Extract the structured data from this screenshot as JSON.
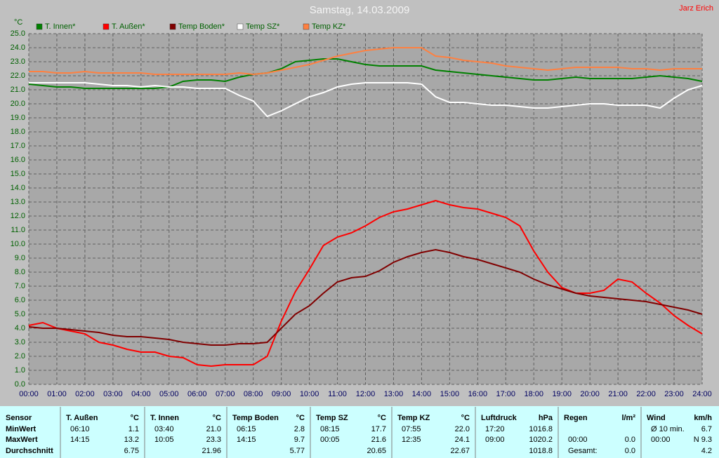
{
  "chart_data": {
    "type": "line",
    "title": "Samstag, 14.03.2009",
    "author": "Jarz Erich",
    "ylabel": "°C",
    "xlim": [
      0,
      24
    ],
    "ylim": [
      0,
      25
    ],
    "grid": true,
    "x": [
      0,
      0.5,
      1,
      1.5,
      2,
      2.5,
      3,
      3.5,
      4,
      4.5,
      5,
      5.5,
      6,
      6.5,
      7,
      7.5,
      8,
      8.5,
      9,
      9.5,
      10,
      10.5,
      11,
      11.5,
      12,
      12.5,
      13,
      13.5,
      14,
      14.5,
      15,
      15.5,
      16,
      16.5,
      17,
      17.5,
      18,
      18.5,
      19,
      19.5,
      20,
      20.5,
      21,
      21.5,
      22,
      22.5,
      23,
      23.5,
      24
    ],
    "xticks": [
      {
        "value": 0,
        "label": "00:00"
      },
      {
        "value": 1,
        "label": "01:00"
      },
      {
        "value": 2,
        "label": "02:00"
      },
      {
        "value": 3,
        "label": "03:00"
      },
      {
        "value": 4,
        "label": "04:00"
      },
      {
        "value": 5,
        "label": "05:00"
      },
      {
        "value": 6,
        "label": "06:00"
      },
      {
        "value": 7,
        "label": "07:00"
      },
      {
        "value": 8,
        "label": "08:00"
      },
      {
        "value": 9,
        "label": "09:00"
      },
      {
        "value": 10,
        "label": "10:00"
      },
      {
        "value": 11,
        "label": "11:00"
      },
      {
        "value": 12,
        "label": "12:00"
      },
      {
        "value": 13,
        "label": "13:00"
      },
      {
        "value": 14,
        "label": "14:00"
      },
      {
        "value": 15,
        "label": "15:00"
      },
      {
        "value": 16,
        "label": "16:00"
      },
      {
        "value": 17,
        "label": "17:00"
      },
      {
        "value": 18,
        "label": "18:00"
      },
      {
        "value": 19,
        "label": "19:00"
      },
      {
        "value": 20,
        "label": "20:00"
      },
      {
        "value": 21,
        "label": "21:00"
      },
      {
        "value": 22,
        "label": "22:00"
      },
      {
        "value": 23,
        "label": "23:00"
      },
      {
        "value": 24,
        "label": "24:00"
      }
    ],
    "yticks": [
      {
        "value": 0,
        "label": "0.0"
      },
      {
        "value": 1,
        "label": "1.0"
      },
      {
        "value": 2,
        "label": "2.0"
      },
      {
        "value": 3,
        "label": "3.0"
      },
      {
        "value": 4,
        "label": "4.0"
      },
      {
        "value": 5,
        "label": "5.0"
      },
      {
        "value": 6,
        "label": "6.0"
      },
      {
        "value": 7,
        "label": "7.0"
      },
      {
        "value": 8,
        "label": "8.0"
      },
      {
        "value": 9,
        "label": "9.0"
      },
      {
        "value": 10,
        "label": "10.0"
      },
      {
        "value": 11,
        "label": "11.0"
      },
      {
        "value": 12,
        "label": "12.0"
      },
      {
        "value": 13,
        "label": "13.0"
      },
      {
        "value": 14,
        "label": "14.0"
      },
      {
        "value": 15,
        "label": "15.0"
      },
      {
        "value": 16,
        "label": "16.0"
      },
      {
        "value": 17,
        "label": "17.0"
      },
      {
        "value": 18,
        "label": "18.0"
      },
      {
        "value": 19,
        "label": "19.0"
      },
      {
        "value": 20,
        "label": "20.0"
      },
      {
        "value": 21,
        "label": "21.0"
      },
      {
        "value": 22,
        "label": "22.0"
      },
      {
        "value": 23,
        "label": "23.0"
      },
      {
        "value": 24,
        "label": "24.0"
      },
      {
        "value": 25,
        "label": "25.0"
      }
    ],
    "series": [
      {
        "name": "T. Innen*",
        "color": "#008000",
        "values": [
          21.4,
          21.3,
          21.2,
          21.2,
          21.1,
          21.1,
          21.1,
          21.1,
          21.1,
          21.1,
          21.2,
          21.6,
          21.7,
          21.7,
          21.6,
          21.9,
          22.1,
          22.2,
          22.5,
          23.0,
          23.1,
          23.2,
          23.2,
          23.0,
          22.8,
          22.7,
          22.7,
          22.7,
          22.7,
          22.4,
          22.3,
          22.2,
          22.1,
          22.0,
          21.9,
          21.8,
          21.7,
          21.7,
          21.8,
          21.9,
          21.8,
          21.8,
          21.8,
          21.8,
          21.9,
          22.0,
          21.9,
          21.8,
          21.6
        ]
      },
      {
        "name": "T. Außen*",
        "color": "#ff0000",
        "values": [
          4.2,
          4.4,
          4.0,
          3.8,
          3.6,
          3.0,
          2.8,
          2.5,
          2.3,
          2.3,
          2.0,
          1.9,
          1.4,
          1.3,
          1.4,
          1.4,
          1.4,
          2.0,
          4.5,
          6.6,
          8.2,
          9.9,
          10.5,
          10.8,
          11.3,
          11.9,
          12.3,
          12.5,
          12.8,
          13.1,
          12.8,
          12.6,
          12.5,
          12.2,
          11.9,
          11.3,
          9.5,
          8.0,
          6.9,
          6.5,
          6.5,
          6.7,
          7.5,
          7.3,
          6.5,
          5.8,
          4.9,
          4.2,
          3.6
        ]
      },
      {
        "name": "Temp Boden*",
        "color": "#800000",
        "values": [
          4.1,
          4.0,
          4.0,
          3.9,
          3.8,
          3.7,
          3.5,
          3.4,
          3.4,
          3.3,
          3.2,
          3.0,
          2.9,
          2.8,
          2.8,
          2.9,
          2.9,
          3.0,
          4.0,
          5.0,
          5.6,
          6.5,
          7.3,
          7.6,
          7.7,
          8.1,
          8.7,
          9.1,
          9.4,
          9.6,
          9.4,
          9.1,
          8.9,
          8.6,
          8.3,
          8.0,
          7.5,
          7.1,
          6.8,
          6.5,
          6.3,
          6.2,
          6.1,
          6.0,
          5.9,
          5.7,
          5.5,
          5.3,
          5.0
        ]
      },
      {
        "name": "Temp SZ*",
        "color": "#ffffff",
        "values": [
          21.5,
          21.5,
          21.5,
          21.5,
          21.5,
          21.4,
          21.3,
          21.3,
          21.2,
          21.3,
          21.2,
          21.2,
          21.1,
          21.1,
          21.1,
          20.6,
          20.2,
          19.1,
          19.5,
          20.0,
          20.5,
          20.8,
          21.2,
          21.4,
          21.5,
          21.5,
          21.5,
          21.5,
          21.4,
          20.5,
          20.1,
          20.1,
          20.0,
          19.9,
          19.9,
          19.8,
          19.7,
          19.7,
          19.8,
          19.9,
          20.0,
          20.0,
          19.9,
          19.9,
          19.9,
          19.7,
          20.4,
          21.0,
          21.3
        ]
      },
      {
        "name": "Temp KZ*",
        "color": "#ff8040",
        "values": [
          22.3,
          22.3,
          22.2,
          22.2,
          22.3,
          22.2,
          22.2,
          22.2,
          22.2,
          22.1,
          22.1,
          22.1,
          22.1,
          22.1,
          22.1,
          22.2,
          22.1,
          22.2,
          22.4,
          22.6,
          22.8,
          23.1,
          23.4,
          23.6,
          23.8,
          23.9,
          24.0,
          24.0,
          24.0,
          23.4,
          23.3,
          23.1,
          23.0,
          22.9,
          22.7,
          22.6,
          22.5,
          22.4,
          22.5,
          22.6,
          22.6,
          22.6,
          22.6,
          22.5,
          22.5,
          22.4,
          22.5,
          22.5,
          22.5
        ]
      }
    ]
  },
  "table": {
    "header": "Sensor",
    "columns": [
      {
        "name": "T. Außen",
        "unit": "°C"
      },
      {
        "name": "T. Innen",
        "unit": "°C"
      },
      {
        "name": "Temp Boden",
        "unit": "°C"
      },
      {
        "name": "Temp SZ",
        "unit": "°C"
      },
      {
        "name": "Temp KZ",
        "unit": "°C"
      },
      {
        "name": "Luftdruck",
        "unit": "hPa"
      },
      {
        "name": "Regen",
        "unit": "l/m²"
      },
      {
        "name": "Wind",
        "unit": "km/h"
      }
    ],
    "rows": [
      {
        "label": "MinWert",
        "cells": [
          [
            "06:10",
            "1.1"
          ],
          [
            "03:40",
            "21.0"
          ],
          [
            "06:15",
            "2.8"
          ],
          [
            "08:15",
            "17.7"
          ],
          [
            "07:55",
            "22.0"
          ],
          [
            "17:20",
            "1016.8"
          ],
          [
            null,
            null
          ],
          [
            "Ø 10 min.",
            "6.7"
          ]
        ]
      },
      {
        "label": "MaxWert",
        "cells": [
          [
            "14:15",
            "13.2"
          ],
          [
            "10:05",
            "23.3"
          ],
          [
            "14:15",
            "9.7"
          ],
          [
            "00:05",
            "21.6"
          ],
          [
            "12:35",
            "24.1"
          ],
          [
            "09:00",
            "1020.2"
          ],
          [
            "00:00",
            "0.0"
          ],
          [
            "00:00",
            "N 9.3"
          ]
        ]
      },
      {
        "label": "Durchschnitt",
        "cells": [
          [
            null,
            "6.75"
          ],
          [
            null,
            "21.96"
          ],
          [
            null,
            "5.77"
          ],
          [
            null,
            "20.65"
          ],
          [
            null,
            "22.67"
          ],
          [
            null,
            "1018.8"
          ],
          [
            "Gesamt:",
            "0.0"
          ],
          [
            null,
            "4.2"
          ]
        ]
      }
    ]
  }
}
